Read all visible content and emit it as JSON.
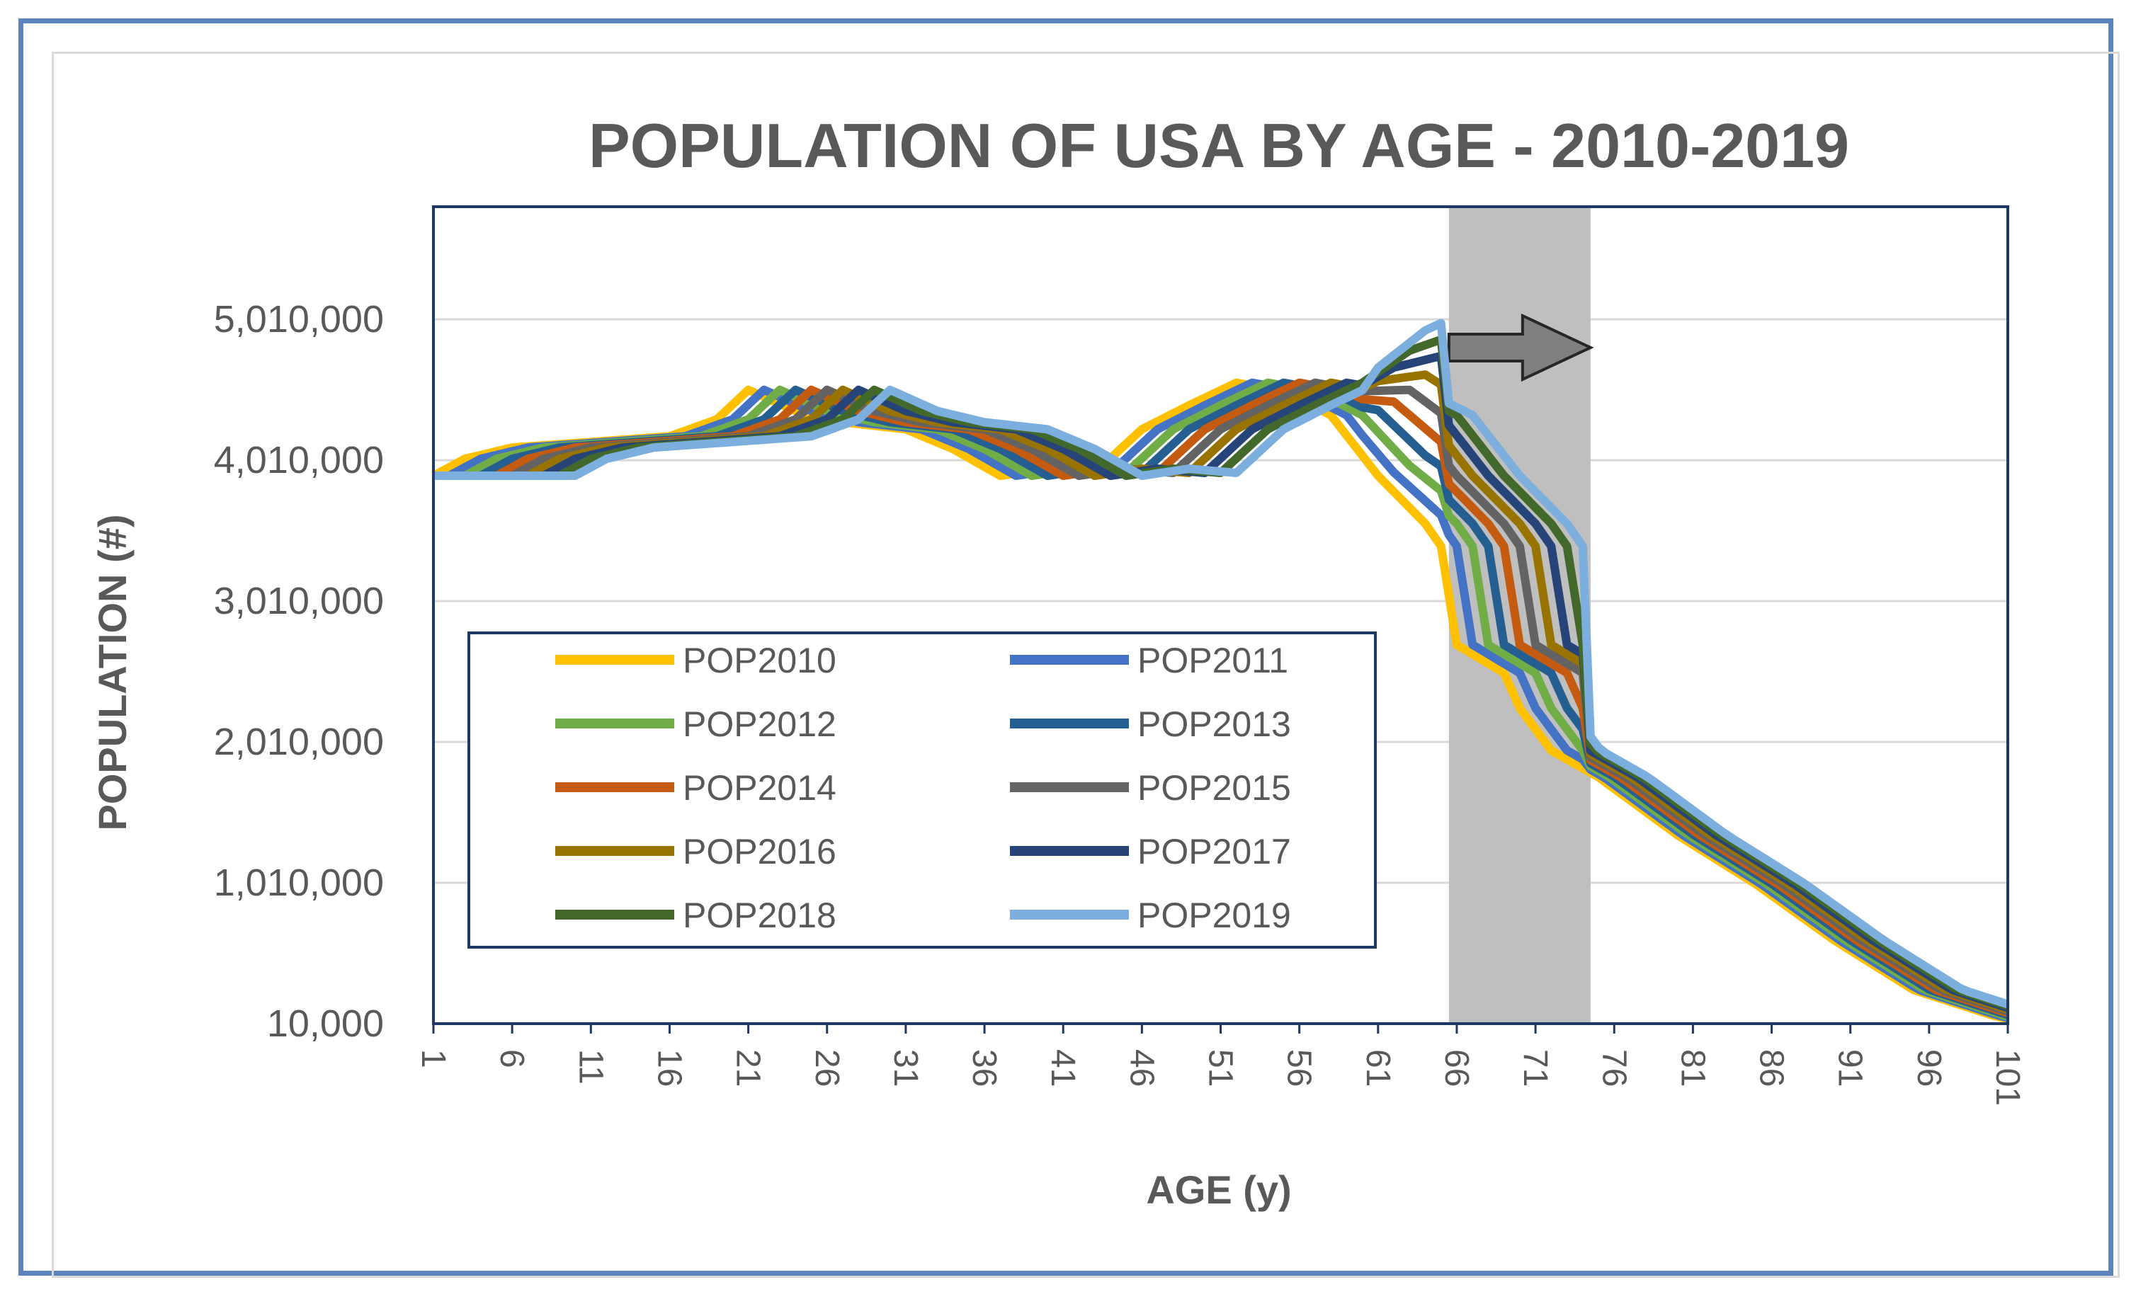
{
  "chart_data": {
    "type": "line",
    "title": "POPULATION OF USA BY AGE - 2010-2019",
    "xlabel": "AGE (y)",
    "ylabel": "POPULATION (#)",
    "ylim": [
      10000,
      5810000
    ],
    "yticks": [
      10000,
      1010000,
      2010000,
      3010000,
      4010000,
      5010000
    ],
    "ytick_labels": [
      "10,000",
      "1,010,000",
      "2,010,000",
      "3,010,000",
      "4,010,000",
      "5,010,000"
    ],
    "xlim": [
      1,
      101
    ],
    "xticks": [
      1,
      6,
      11,
      16,
      21,
      26,
      31,
      36,
      41,
      46,
      51,
      56,
      61,
      66,
      71,
      76,
      81,
      86,
      91,
      96,
      101
    ],
    "xtick_labels": [
      "1",
      "6",
      "11",
      "16",
      "21",
      "26",
      "31",
      "36",
      "41",
      "46",
      "51",
      "56",
      "61",
      "66",
      "71",
      "76",
      "81",
      "86",
      "91",
      "96",
      "101"
    ],
    "grid": true,
    "legend_position": "bottom-left",
    "highlight": {
      "x_range": [
        65.5,
        74.5
      ],
      "color": "#bfbfbf",
      "annotation": "arrow-right"
    },
    "base_profile_2010": {
      "ages": [
        1,
        3,
        6,
        11,
        16,
        19,
        21,
        24,
        27,
        31,
        34,
        37,
        40,
        43,
        46,
        49,
        52,
        55,
        58,
        61,
        64,
        65,
        66,
        69,
        70,
        72,
        75,
        80,
        85,
        90,
        95,
        100,
        101
      ],
      "values": [
        3900000,
        4020000,
        4100000,
        4140000,
        4180000,
        4300000,
        4510000,
        4360000,
        4280000,
        4230000,
        4090000,
        3900000,
        3950000,
        3920000,
        4230000,
        4400000,
        4560000,
        4500000,
        4330000,
        3900000,
        3560000,
        3400000,
        2700000,
        2500000,
        2250000,
        1950000,
        1760000,
        1350000,
        1000000,
        600000,
        250000,
        70000,
        40000
      ]
    },
    "series": [
      {
        "name": "POP2010",
        "shift": 0,
        "color": "#ffc000"
      },
      {
        "name": "POP2011",
        "shift": 1,
        "color": "#4472c4"
      },
      {
        "name": "POP2012",
        "shift": 2,
        "color": "#70ad47"
      },
      {
        "name": "POP2013",
        "shift": 3,
        "color": "#255e91"
      },
      {
        "name": "POP2014",
        "shift": 4,
        "color": "#c55a11"
      },
      {
        "name": "POP2015",
        "shift": 5,
        "color": "#636363"
      },
      {
        "name": "POP2016",
        "shift": 6,
        "color": "#997300"
      },
      {
        "name": "POP2017",
        "shift": 7,
        "color": "#264478"
      },
      {
        "name": "POP2018",
        "shift": 8,
        "color": "#43682b"
      },
      {
        "name": "POP2019",
        "shift": 9,
        "color": "#7cafdd"
      }
    ]
  }
}
